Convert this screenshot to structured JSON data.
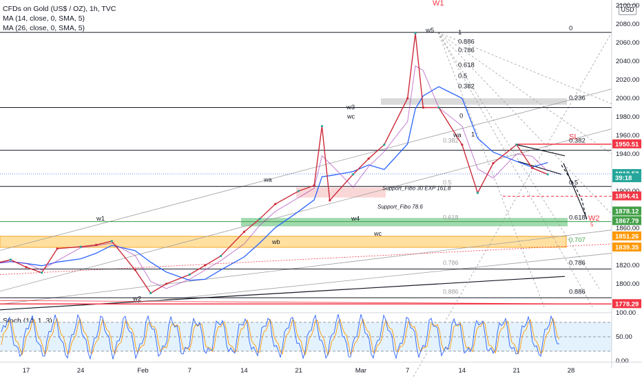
{
  "legend": {
    "symbol": "CFDs on Gold (US$ / OZ), 1h, TVC",
    "ma14": "MA (14, close, 0, SMA, 5)",
    "ma26": "MA (26, close, 0, SMA, 5)"
  },
  "currency_button": "USD",
  "stoch_label": "Stoch (14, 1, 3)",
  "colors": {
    "price_line": "#cc2a3a",
    "ma_blue": "#2962ff",
    "up": "#26a69a",
    "red_label": "#f23645",
    "green_label": "#43a047",
    "orange_zone": "#ffe0a0",
    "green_zone": "#8fd3a0",
    "grey_zone": "#d6d6d6",
    "stoch_bg": "#e3f2fd"
  },
  "chart_data": {
    "type": "line",
    "title": "CFDs on Gold (US$ / OZ), 1h, TVC",
    "x_tick_labels": [
      "17",
      "24",
      "Feb",
      "7",
      "14",
      "21",
      "Mar",
      "7",
      "14",
      "21",
      "28"
    ],
    "y_tick_labels": [
      "2100.00",
      "2080.00",
      "2060.00",
      "2040.00",
      "2020.00",
      "2000.00",
      "1980.00",
      "1960.00",
      "1940.00",
      "1920.00",
      "1900.00",
      "1880.00",
      "1860.00",
      "1840.00",
      "1820.00",
      "1800.00",
      "1780.00"
    ],
    "ylim": [
      1770,
      2100
    ],
    "price_path": [
      {
        "x": "Jan 13",
        "y": 1822
      },
      {
        "x": "Jan 15",
        "y": 1826
      },
      {
        "x": "Jan 17",
        "y": 1818
      },
      {
        "x": "Jan 19",
        "y": 1812
      },
      {
        "x": "Jan 21",
        "y": 1838
      },
      {
        "x": "Jan 24",
        "y": 1840
      },
      {
        "x": "Jan 26",
        "y": 1842
      },
      {
        "x": "Jan 28",
        "y": 1846
      },
      {
        "x": "Jan 31",
        "y": 1815
      },
      {
        "x": "Feb 2",
        "y": 1790
      },
      {
        "x": "Feb 4",
        "y": 1800
      },
      {
        "x": "Feb 7",
        "y": 1810
      },
      {
        "x": "Feb 9",
        "y": 1820
      },
      {
        "x": "Feb 11",
        "y": 1830
      },
      {
        "x": "Feb 14",
        "y": 1856
      },
      {
        "x": "Feb 16",
        "y": 1870
      },
      {
        "x": "Feb 18",
        "y": 1886
      },
      {
        "x": "Feb 21",
        "y": 1900
      },
      {
        "x": "Feb 23",
        "y": 1906
      },
      {
        "x": "Feb 24",
        "y": 1970
      },
      {
        "x": "Feb 25",
        "y": 1890
      },
      {
        "x": "Feb 28",
        "y": 1918
      },
      {
        "x": "Mar 2",
        "y": 1935
      },
      {
        "x": "Mar 4",
        "y": 1950
      },
      {
        "x": "Mar 7",
        "y": 2000
      },
      {
        "x": "Mar 8",
        "y": 2070
      },
      {
        "x": "Mar 9",
        "y": 1990
      },
      {
        "x": "Mar 11",
        "y": 1990
      },
      {
        "x": "Mar 14",
        "y": 1950
      },
      {
        "x": "Mar 16",
        "y": 1898
      },
      {
        "x": "Mar 18",
        "y": 1930
      },
      {
        "x": "Mar 21",
        "y": 1950
      },
      {
        "x": "Mar 23",
        "y": 1925
      },
      {
        "x": "Mar 25",
        "y": 1918
      }
    ],
    "price_labels": [
      {
        "text": "1950.51",
        "y": 1950.51,
        "color": "#f23645"
      },
      {
        "text": "1918.52",
        "y": 1918.52,
        "color": "#26a69a"
      },
      {
        "text": "39:18",
        "y": 1914,
        "color": "#26a69a"
      },
      {
        "text": "1894.41",
        "y": 1894.41,
        "color": "#f23645"
      },
      {
        "text": "1878.12",
        "y": 1878.12,
        "color": "#ffffff"
      },
      {
        "text": "1867.79",
        "y": 1867.79,
        "color": "#ffffff"
      },
      {
        "text": "1851.26",
        "y": 1851.26,
        "color": "#ffffff"
      },
      {
        "text": "1839.35",
        "y": 1839.35,
        "color": "#ffffff"
      },
      {
        "text": "1778.29",
        "y": 1778.29,
        "color": "#f23645"
      }
    ],
    "fib_levels": [
      {
        "text": "0",
        "y": 2071
      },
      {
        "text": "0.236",
        "y": 1996
      },
      {
        "text": "0.382",
        "y": 1950
      },
      {
        "text": "0.5",
        "y": 1905
      },
      {
        "text": "0.618",
        "y": 1867
      },
      {
        "text": "0.707",
        "y": 1843
      },
      {
        "text": "0.786",
        "y": 1818
      },
      {
        "text": "0.886",
        "y": 1787
      }
    ],
    "fan_labels": [
      {
        "text": "1",
        "y": 2071
      },
      {
        "text": "0.886",
        "y": 2061
      },
      {
        "text": "0.786",
        "y": 2052
      },
      {
        "text": "0.618",
        "y": 2036
      },
      {
        "text": "0.5",
        "y": 2024
      },
      {
        "text": "0.382",
        "y": 2013
      },
      {
        "text": "0",
        "y": 1981
      },
      {
        "text": "1",
        "y": 1961
      }
    ],
    "annotations": [
      {
        "text": "W1",
        "y": 2100
      },
      {
        "text": "w5",
        "y": 2071
      },
      {
        "text": "w3",
        "y": 1988
      },
      {
        "text": "wc",
        "y": 1978
      },
      {
        "text": "w4",
        "y": 1868
      },
      {
        "text": "wa",
        "y": 1910
      },
      {
        "text": "wb",
        "y": 1843
      },
      {
        "text": "w1",
        "y": 1868
      },
      {
        "text": "w2",
        "y": 1782
      },
      {
        "text": "wc",
        "y": 1852
      },
      {
        "text": "SL",
        "y": 1956
      },
      {
        "text": "W2",
        "y": 1868
      },
      {
        "text": "5",
        "y": 1862
      },
      {
        "text": "Support_Fibo 30 EXP 161.8",
        "y": 1901
      },
      {
        "text": "Support_Fibo 78.6",
        "y": 1881
      },
      {
        "text": "wa",
        "y": 1958
      }
    ],
    "stoch": {
      "levels": [
        80,
        50,
        20
      ],
      "tick_labels": [
        "100.00",
        "50.00",
        "0.00"
      ]
    }
  }
}
